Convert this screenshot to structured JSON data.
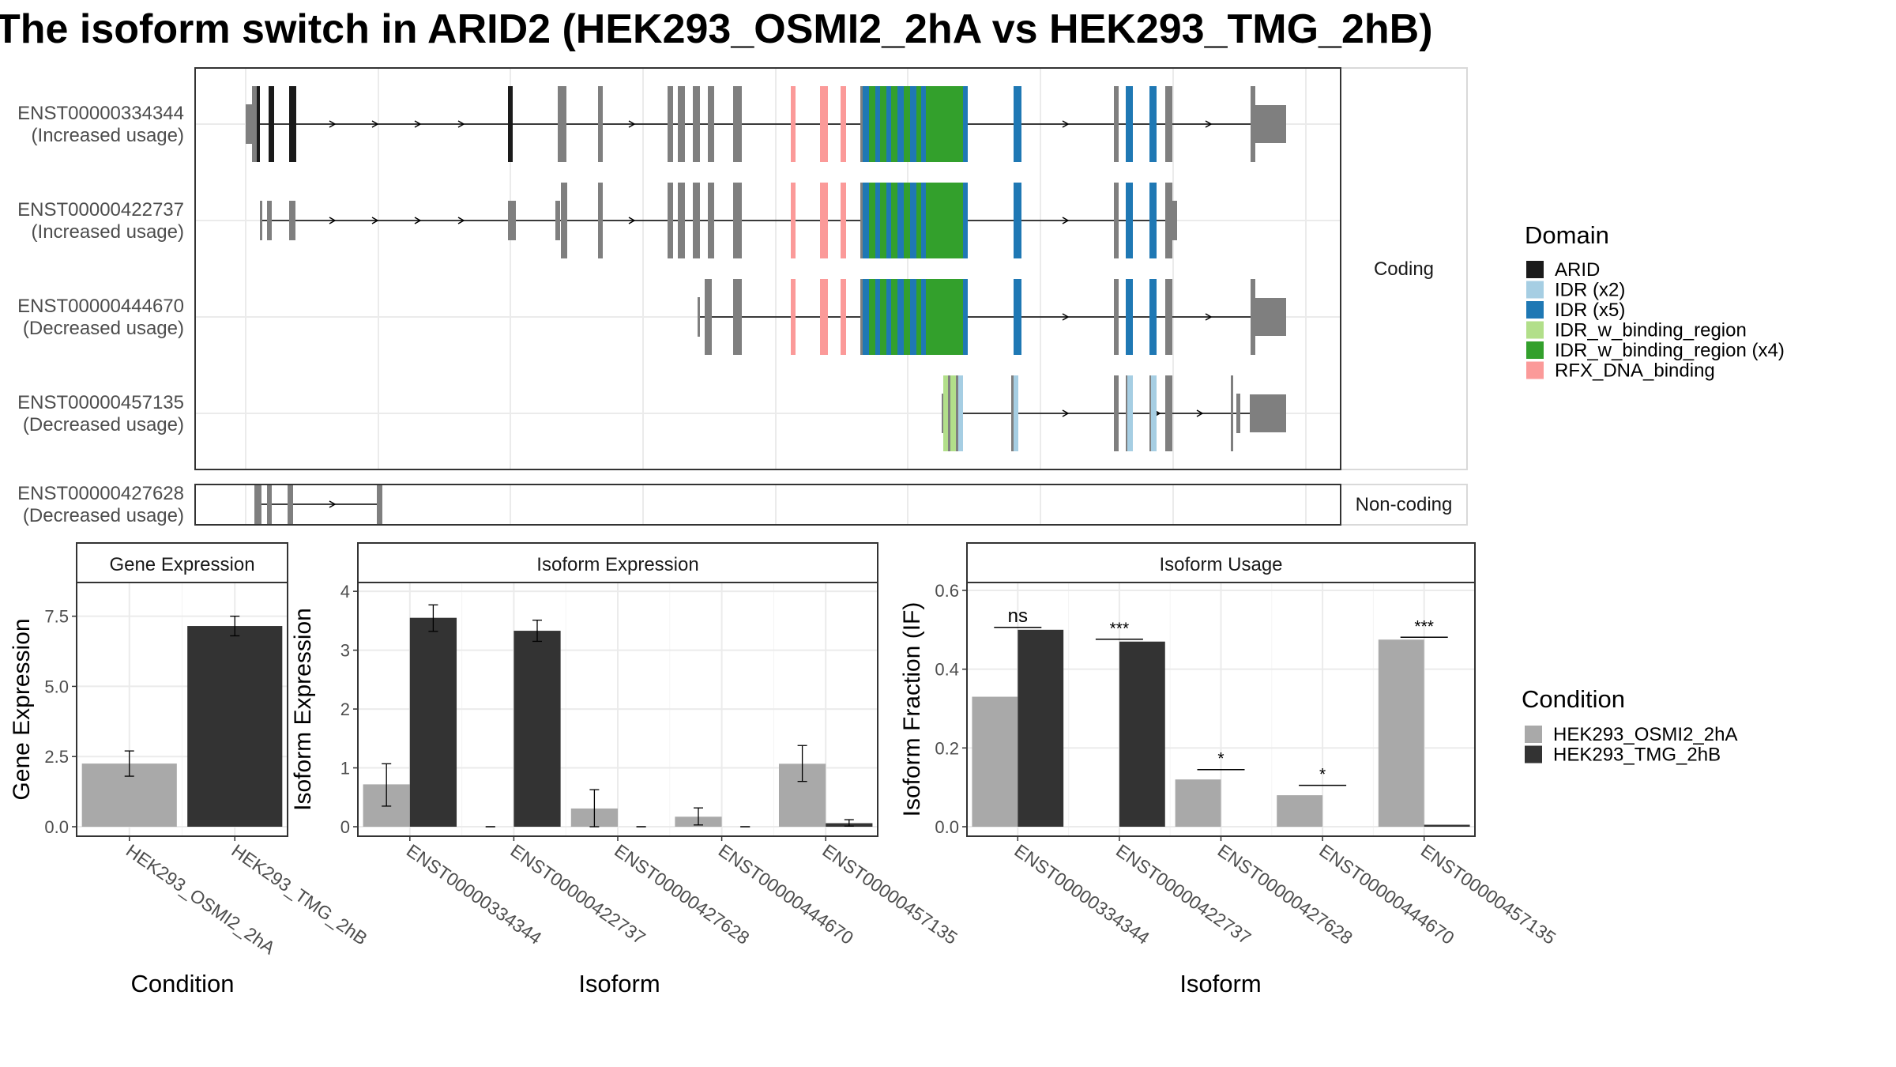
{
  "title": "The isoform switch in ARID2 (HEK293_OSMI2_2hA vs HEK293_TMG_2hB)",
  "transcript_panel": {
    "coding_label": "Coding",
    "noncoding_label": "Non-coding",
    "transcripts": [
      {
        "id": "ENST00000334344",
        "usage": "(Increased usage)",
        "group": "coding"
      },
      {
        "id": "ENST00000422737",
        "usage": "(Increased usage)",
        "group": "coding"
      },
      {
        "id": "ENST00000444670",
        "usage": "(Decreased usage)",
        "group": "coding"
      },
      {
        "id": "ENST00000457135",
        "usage": "(Decreased usage)",
        "group": "coding"
      },
      {
        "id": "ENST00000427628",
        "usage": "(Decreased usage)",
        "group": "noncoding"
      }
    ]
  },
  "domain_legend": {
    "title": "Domain",
    "items": [
      {
        "label": "ARID",
        "color": "#1a1a1a"
      },
      {
        "label": "IDR (x2)",
        "color": "#a6cee3"
      },
      {
        "label": "IDR (x5)",
        "color": "#1f78b4"
      },
      {
        "label": "IDR_w_binding_region",
        "color": "#b2df8a"
      },
      {
        "label": "IDR_w_binding_region (x4)",
        "color": "#33a02c"
      },
      {
        "label": "RFX_DNA_binding",
        "color": "#fb9a99"
      }
    ]
  },
  "condition_legend": {
    "title": "Condition",
    "items": [
      {
        "label": "HEK293_OSMI2_2hA",
        "color": "#a9a9a9"
      },
      {
        "label": "HEK293_TMG_2hB",
        "color": "#333333"
      }
    ]
  },
  "chart_data": [
    {
      "type": "bar",
      "panel": "gene",
      "title": "Gene Expression",
      "xlabel": "Condition",
      "ylabel": "Gene Expression",
      "ylim": [
        0,
        8.7
      ],
      "yticks": [
        "0.0",
        "2.5",
        "5.0",
        "7.5"
      ],
      "categories": [
        "HEK293_OSMI2_2hA",
        "HEK293_TMG_2hB"
      ],
      "values": [
        2.25,
        7.15
      ],
      "errors": [
        [
          1.8,
          2.7
        ],
        [
          6.8,
          7.5
        ]
      ]
    },
    {
      "type": "bar",
      "panel": "isoform_exp",
      "title": "Isoform Expression",
      "xlabel": "Isoform",
      "ylabel": "Isoform Expression",
      "ylim": [
        0,
        4.15
      ],
      "yticks": [
        "0",
        "1",
        "2",
        "3",
        "4"
      ],
      "categories": [
        "ENST00000334344",
        "ENST00000422737",
        "ENST00000427628",
        "ENST00000444670",
        "ENST00000457135"
      ],
      "series": [
        {
          "name": "HEK293_OSMI2_2hA",
          "values": [
            0.72,
            0,
            0.31,
            0.17,
            1.07
          ],
          "errors": [
            [
              0.35,
              1.07
            ],
            [
              0,
              0
            ],
            [
              0,
              0.63
            ],
            [
              0.03,
              0.32
            ],
            [
              0.77,
              1.38
            ]
          ]
        },
        {
          "name": "HEK293_TMG_2hB",
          "values": [
            3.55,
            3.33,
            0,
            0,
            0.06
          ],
          "errors": [
            [
              3.32,
              3.77
            ],
            [
              3.15,
              3.51
            ],
            [
              0,
              0
            ],
            [
              0,
              0
            ],
            [
              0.01,
              0.12
            ]
          ]
        }
      ]
    },
    {
      "type": "bar",
      "panel": "isoform_usage",
      "title": "Isoform Usage",
      "xlabel": "Isoform",
      "ylabel": "Isoform Fraction (IF)",
      "ylim": [
        0,
        0.62
      ],
      "yticks": [
        "0.0",
        "0.2",
        "0.4",
        "0.6"
      ],
      "categories": [
        "ENST00000334344",
        "ENST00000422737",
        "ENST00000427628",
        "ENST00000444670",
        "ENST00000457135"
      ],
      "series": [
        {
          "name": "HEK293_OSMI2_2hA",
          "values": [
            0.33,
            0,
            0.12,
            0.08,
            0.475
          ]
        },
        {
          "name": "HEK293_TMG_2hB",
          "values": [
            0.5,
            0.47,
            0,
            0,
            0.005
          ]
        }
      ],
      "significance": [
        "ns",
        "***",
        "*",
        "*",
        "***"
      ]
    }
  ]
}
